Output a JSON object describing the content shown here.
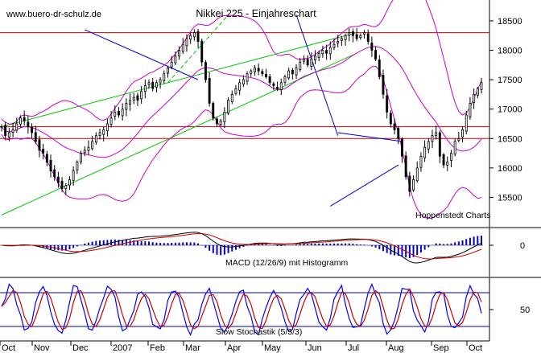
{
  "chart_data": {
    "type": "line",
    "title": "Nikkei 225 - Einjahreschart",
    "source_label": "www.buero-dr-schulz.de",
    "credit_label": "Hoppenstedt Charts",
    "xlabel": "",
    "ylabel": "",
    "x_tick_labels": [
      "Oct",
      "Nov",
      "Dec",
      "2007",
      "Feb",
      "Mar",
      "Apr",
      "May",
      "Jun",
      "Jul",
      "Aug",
      "Sep",
      "Oct"
    ],
    "price_panel": {
      "ylim": [
        15000,
        18800
      ],
      "y_ticks": [
        15500,
        16000,
        16500,
        17000,
        17500,
        18000,
        18500
      ],
      "grid": false,
      "series": [
        {
          "values": [
            16700,
            16550,
            16600,
            16650,
            16750,
            16850,
            16800,
            16700,
            16600,
            16450,
            16300,
            16250,
            16100,
            15950,
            15850,
            15750,
            15650,
            15700,
            15800,
            15950,
            16100,
            16250,
            16300,
            16350,
            16450,
            16550,
            16600,
            16650,
            16750,
            16850,
            16950,
            16900,
            17000,
            17100,
            17150,
            17200,
            17150,
            17300,
            17400,
            17450,
            17350,
            17450,
            17500,
            17600,
            17700,
            17800,
            17900,
            18000,
            18100,
            18200,
            18250,
            18300,
            18150,
            17800,
            17500,
            17100,
            16850,
            16750,
            16800,
            16950,
            17150,
            17250,
            17350,
            17450,
            17500,
            17600,
            17650,
            17700,
            17650,
            17600,
            17550,
            17450,
            17400,
            17350,
            17450,
            17550,
            17650,
            17600,
            17700,
            17800,
            17850,
            17750,
            17850,
            17900,
            17950,
            18000,
            17950,
            18050,
            18100,
            18150,
            18200,
            18250,
            18300,
            18250,
            18200,
            18250,
            18300,
            18150,
            18000,
            17850,
            17550,
            17250,
            16950,
            16750,
            16650,
            16500,
            16200,
            15850,
            15600,
            15800,
            16000,
            16200,
            16350,
            16450,
            16550,
            16600,
            16200,
            16050,
            16100,
            16250,
            16450,
            16500,
            16650,
            16900,
            17100,
            17250,
            17350,
            17450
          ]
        }
      ],
      "horizontal_lines": [
        18300,
        16700,
        16500
      ],
      "channel_lines": [
        {
          "color": "#00cc00",
          "x": [
            0,
            94
          ],
          "y": [
            16700,
            18300
          ]
        },
        {
          "color": "#00cc00",
          "x": [
            0,
            94
          ],
          "y": [
            15200,
            17950
          ]
        },
        {
          "color": "#00cc00",
          "style": "dashed",
          "x": [
            44,
            60
          ],
          "y": [
            17450,
            18600
          ]
        },
        {
          "color": "#0000cc",
          "x": [
            22,
            52
          ],
          "y": [
            18350,
            17500
          ]
        },
        {
          "color": "#0000cc",
          "x": [
            78,
            89
          ],
          "y": [
            18600,
            16550
          ]
        },
        {
          "color": "#0000cc",
          "x": [
            89,
            106
          ],
          "y": [
            16600,
            16450
          ]
        },
        {
          "color": "#0000cc",
          "x": [
            87,
            105
          ],
          "y": [
            15350,
            16050
          ]
        }
      ]
    },
    "macd_panel": {
      "label": "MACD (12/26/9) mit Histogramm",
      "y_ticks": [
        0
      ]
    },
    "stochastic_panel": {
      "label": "Slow Stochastik (5/3/3)",
      "y_ticks": [
        50
      ],
      "ylim": [
        0,
        100
      ],
      "upper_line": 80,
      "lower_line": 20
    },
    "colors": {
      "price": "#000000",
      "bollinger": "#cc00cc",
      "horizontal": "#cc0000",
      "macd": "#000000",
      "signal": "#cc0000",
      "histogram": "#0000cc",
      "stoch_k": "#0000ff",
      "stoch_d": "#cc0000",
      "stoch_level": "#0000aa"
    }
  }
}
